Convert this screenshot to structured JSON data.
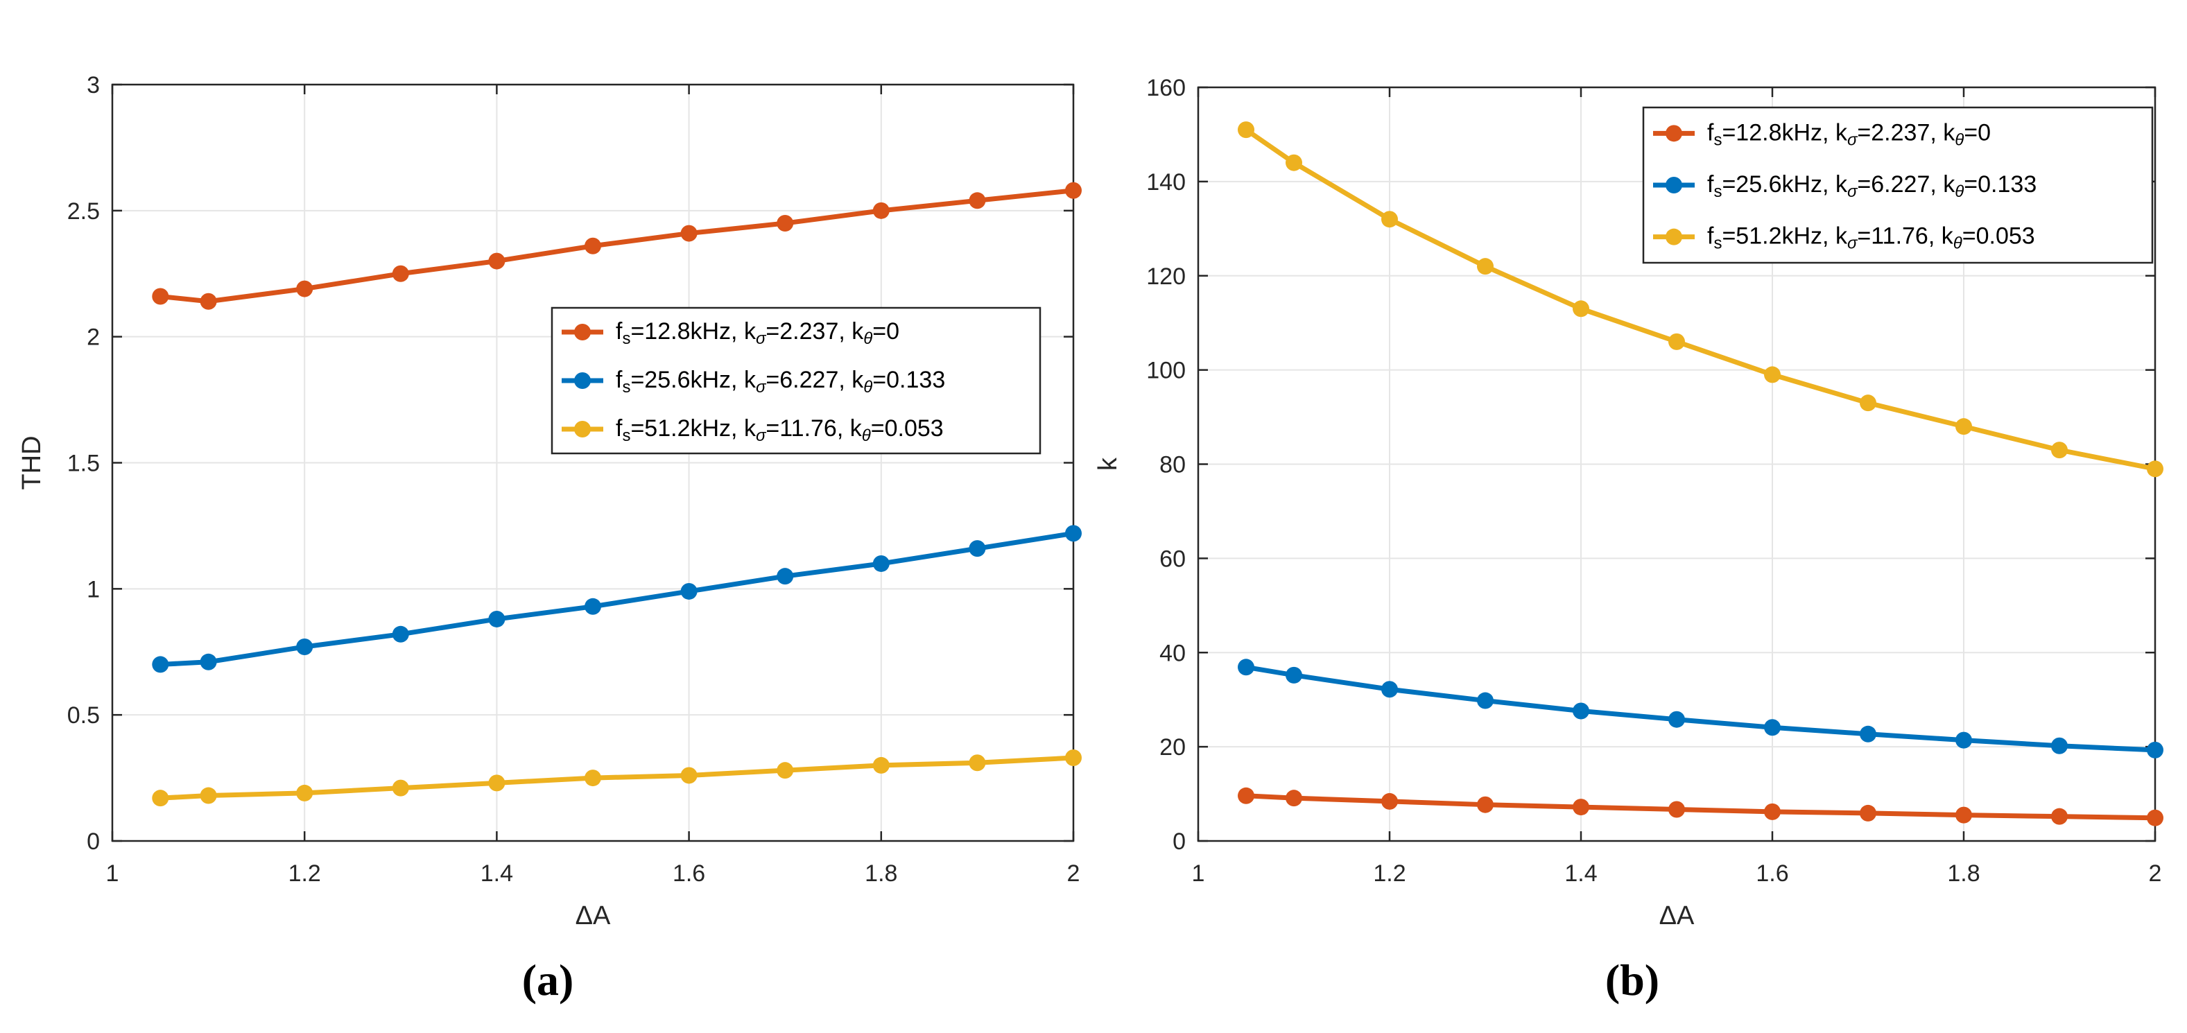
{
  "colors": {
    "series1": "#D95319",
    "series2": "#0072BD",
    "series3": "#EDB120",
    "grid": "#E5E5E5",
    "axis": "#262626"
  },
  "chart_data": [
    {
      "panel": "a",
      "caption": "(a)",
      "type": "line",
      "xlabel": "ΔA",
      "ylabel": "THD",
      "xlim": [
        1,
        2
      ],
      "ylim": [
        0,
        3
      ],
      "xticks": [
        1,
        1.2,
        1.4,
        1.6,
        1.8,
        2
      ],
      "xtick_labels": [
        "1",
        "1.2",
        "1.4",
        "1.6",
        "1.8",
        "2"
      ],
      "yticks": [
        0,
        0.5,
        1,
        1.5,
        2,
        2.5,
        3
      ],
      "ytick_labels": [
        "0",
        "0.5",
        "1",
        "1.5",
        "2",
        "2.5",
        "3"
      ],
      "grid": true,
      "legend_position": "center-right",
      "x": [
        1.05,
        1.1,
        1.2,
        1.3,
        1.4,
        1.5,
        1.6,
        1.7,
        1.8,
        1.9,
        2.0
      ],
      "series": [
        {
          "name": "fs=12.8kHz, kσ=2.237, kθ=0",
          "label_parts": {
            "f": "f",
            "f_sub": "s",
            "f_val": "=12.8kHz, ",
            "ks": "k",
            "ks_sub": "σ",
            "ks_val": "=2.237, ",
            "kt": "k",
            "kt_sub": "θ",
            "kt_val": "=0"
          },
          "values": [
            2.16,
            2.14,
            2.19,
            2.25,
            2.3,
            2.36,
            2.41,
            2.45,
            2.5,
            2.54,
            2.58
          ]
        },
        {
          "name": "fs=25.6kHz, kσ=6.227, kθ=0.133",
          "label_parts": {
            "f": "f",
            "f_sub": "s",
            "f_val": "=25.6kHz, ",
            "ks": "k",
            "ks_sub": "σ",
            "ks_val": "=6.227, ",
            "kt": "k",
            "kt_sub": "θ",
            "kt_val": "=0.133"
          },
          "values": [
            0.7,
            0.71,
            0.77,
            0.82,
            0.88,
            0.93,
            0.99,
            1.05,
            1.1,
            1.16,
            1.22
          ]
        },
        {
          "name": "fs=51.2kHz, kσ=11.76, kθ=0.053",
          "label_parts": {
            "f": "f",
            "f_sub": "s",
            "f_val": "=51.2kHz, ",
            "ks": "k",
            "ks_sub": "σ",
            "ks_val": "=11.76, ",
            "kt": "k",
            "kt_sub": "θ",
            "kt_val": "=0.053"
          },
          "values": [
            0.17,
            0.18,
            0.19,
            0.21,
            0.23,
            0.25,
            0.26,
            0.28,
            0.3,
            0.31,
            0.33
          ]
        }
      ]
    },
    {
      "panel": "b",
      "caption": "(b)",
      "type": "line",
      "xlabel": "ΔA",
      "ylabel": "k",
      "xlim": [
        1,
        2
      ],
      "ylim": [
        0,
        160
      ],
      "xticks": [
        1,
        1.2,
        1.4,
        1.6,
        1.8,
        2
      ],
      "xtick_labels": [
        "1",
        "1.2",
        "1.4",
        "1.6",
        "1.8",
        "2"
      ],
      "yticks": [
        0,
        20,
        40,
        60,
        80,
        100,
        120,
        140,
        160
      ],
      "ytick_labels": [
        "0",
        "20",
        "40",
        "60",
        "80",
        "100",
        "120",
        "140",
        "160"
      ],
      "grid": true,
      "legend_position": "top-right",
      "x": [
        1.05,
        1.1,
        1.2,
        1.3,
        1.4,
        1.5,
        1.6,
        1.7,
        1.8,
        1.9,
        2.0
      ],
      "series": [
        {
          "name": "fs=12.8kHz, kσ=2.237, kθ=0",
          "label_parts": {
            "f": "f",
            "f_sub": "s",
            "f_val": "=12.8kHz, ",
            "ks": "k",
            "ks_sub": "σ",
            "ks_val": "=2.237, ",
            "kt": "k",
            "kt_sub": "θ",
            "kt_val": "=0"
          },
          "values": [
            9.6,
            9.1,
            8.4,
            7.7,
            7.2,
            6.7,
            6.2,
            5.9,
            5.5,
            5.2,
            4.9
          ]
        },
        {
          "name": "fs=25.6kHz, kσ=6.227, kθ=0.133",
          "label_parts": {
            "f": "f",
            "f_sub": "s",
            "f_val": "=25.6kHz, ",
            "ks": "k",
            "ks_sub": "σ",
            "ks_val": "=6.227, ",
            "kt": "k",
            "kt_sub": "θ",
            "kt_val": "=0.133"
          },
          "values": [
            36.9,
            35.2,
            32.2,
            29.8,
            27.6,
            25.8,
            24.1,
            22.7,
            21.4,
            20.2,
            19.3
          ]
        },
        {
          "name": "fs=51.2kHz, kσ=11.76, kθ=0.053",
          "label_parts": {
            "f": "f",
            "f_sub": "s",
            "f_val": "=51.2kHz, ",
            "ks": "k",
            "ks_sub": "σ",
            "ks_val": "=11.76, ",
            "kt": "k",
            "kt_sub": "θ",
            "kt_val": "=0.053"
          },
          "values": [
            151,
            144,
            132,
            122,
            113,
            106,
            99,
            93,
            88,
            83,
            79
          ]
        }
      ]
    }
  ]
}
